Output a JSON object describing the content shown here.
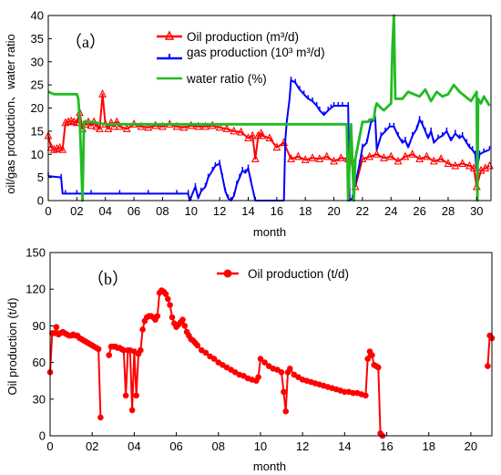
{
  "chart_data": [
    {
      "type": "line",
      "panel_label": "（a）",
      "xlabel": "month",
      "ylabel": "oil/gas production、water ratio",
      "xlim": [
        0,
        31
      ],
      "ylim": [
        0,
        40
      ],
      "xticks": [
        0,
        2,
        4,
        6,
        8,
        10,
        12,
        14,
        16,
        18,
        20,
        22,
        24,
        26,
        28,
        30
      ],
      "xtick_labels": [
        "0",
        "02",
        "04",
        "06",
        "08",
        "10",
        "12",
        "14",
        "16",
        "18",
        "20",
        "22",
        "24",
        "26",
        "28",
        "30"
      ],
      "yticks": [
        0,
        5,
        10,
        15,
        20,
        25,
        30,
        35,
        40
      ],
      "ytick_labels": [
        "0",
        "5",
        "10",
        "15",
        "20",
        "25",
        "30",
        "35",
        "40"
      ],
      "grid": false,
      "legend": "top-center",
      "series": [
        {
          "name": "Oil production (m³/d)",
          "color": "#ff0000",
          "marker": "triangle",
          "x": [
            0,
            0.2,
            0.4,
            0.6,
            0.8,
            1.0,
            1.2,
            1.4,
            1.6,
            1.8,
            2.0,
            2.2,
            2.4,
            2.6,
            2.8,
            3.0,
            3.2,
            3.4,
            3.6,
            3.8,
            4.0,
            4.2,
            4.4,
            4.6,
            4.8,
            5.0,
            5.5,
            6.0,
            6.5,
            7.0,
            7.5,
            8.0,
            8.5,
            9.0,
            9.5,
            10.0,
            10.5,
            11.0,
            11.5,
            12.0,
            12.5,
            13.0,
            13.5,
            14.0,
            14.3,
            14.5,
            14.7,
            14.9,
            15.0,
            15.5,
            16.0,
            16.5,
            17.0,
            17.5,
            18.0,
            18.5,
            19.0,
            19.5,
            20.0,
            20.5,
            21.0,
            21.2,
            21.5,
            22.0,
            22.5,
            23.0,
            23.5,
            24.0,
            24.5,
            25.0,
            25.5,
            26.0,
            26.5,
            27.0,
            27.5,
            28.0,
            28.5,
            29.0,
            29.5,
            29.8,
            30.0,
            30.3,
            30.6,
            30.9
          ],
          "values": [
            14.0,
            11.5,
            11.0,
            11.2,
            11.4,
            11.0,
            16.8,
            17.0,
            17.2,
            17.0,
            16.8,
            19.0,
            15.5,
            16.5,
            17.0,
            16.2,
            17.0,
            16.0,
            15.5,
            23.0,
            16.5,
            15.5,
            16.8,
            16.0,
            17.0,
            16.0,
            15.5,
            16.5,
            16.0,
            15.8,
            16.2,
            16.0,
            16.5,
            16.0,
            15.8,
            16.2,
            16.0,
            16.0,
            16.2,
            15.8,
            15.5,
            15.0,
            14.8,
            13.5,
            14.0,
            9.0,
            14.0,
            14.5,
            14.0,
            13.5,
            11.5,
            12.5,
            9.0,
            9.5,
            8.8,
            9.2,
            9.0,
            9.5,
            8.5,
            9.2,
            9.0,
            9.0,
            3.0,
            9.0,
            9.5,
            10.0,
            9.2,
            9.5,
            8.5,
            9.5,
            10.0,
            9.0,
            9.5,
            8.5,
            9.0,
            8.0,
            7.5,
            8.0,
            7.5,
            7.0,
            3.0,
            6.5,
            7.0,
            7.5
          ]
        },
        {
          "name": "gas production (10³ m³/d)",
          "color": "#0000ff",
          "marker": "short-dash",
          "x": [
            0,
            0.9,
            1.0,
            1.2,
            2.0,
            3.0,
            5.0,
            7.0,
            9.0,
            9.8,
            9.9,
            10.3,
            10.5,
            10.7,
            11.0,
            11.2,
            11.5,
            11.7,
            12.0,
            12.2,
            12.4,
            12.6,
            12.8,
            13.0,
            13.2,
            13.4,
            13.6,
            13.8,
            14.0,
            14.2,
            14.5,
            16.5,
            16.6,
            16.7,
            16.9,
            17.0,
            17.3,
            17.6,
            17.9,
            18.2,
            18.5,
            18.8,
            19.0,
            19.3,
            19.6,
            19.8,
            20.0,
            20.3,
            20.6,
            21.0,
            21.1,
            21.3,
            21.8,
            22.0,
            22.3,
            22.6,
            22.9,
            23.0,
            23.3,
            23.6,
            23.9,
            24.2,
            24.5,
            24.8,
            25.0,
            25.2,
            25.5,
            25.8,
            26.0,
            26.2,
            26.4,
            26.6,
            26.8,
            27.0,
            27.3,
            27.6,
            27.9,
            28.2,
            28.5,
            28.8,
            29.0,
            29.3,
            29.5,
            29.7,
            29.9,
            30.0,
            30.2,
            30.5,
            30.9
          ],
          "values": [
            5.3,
            5.0,
            1.5,
            1.5,
            1.5,
            1.5,
            1.5,
            1.5,
            1.5,
            1.5,
            0.0,
            3.0,
            0.5,
            2.0,
            3.0,
            5.0,
            6.5,
            7.5,
            8.0,
            5.0,
            2.0,
            0.5,
            0.0,
            1.0,
            3.5,
            5.0,
            6.5,
            6.0,
            7.0,
            4.0,
            0.0,
            0.0,
            13.0,
            17.0,
            22.0,
            26.0,
            25.5,
            24.0,
            23.0,
            22.0,
            21.5,
            20.5,
            19.5,
            18.5,
            19.5,
            20.0,
            20.5,
            20.5,
            20.5,
            20.5,
            0.0,
            0.5,
            8.0,
            11.5,
            12.5,
            17.0,
            17.5,
            11.0,
            14.0,
            15.0,
            16.0,
            16.0,
            14.0,
            12.5,
            13.0,
            11.5,
            14.0,
            15.5,
            17.5,
            16.5,
            15.0,
            13.5,
            15.0,
            12.5,
            13.5,
            14.0,
            15.0,
            13.0,
            14.5,
            13.5,
            14.0,
            12.5,
            11.5,
            11.0,
            10.0,
            6.5,
            10.0,
            10.5,
            11.0
          ]
        },
        {
          "name": "water ratio (%)",
          "color": "#22bb22",
          "marker": "none",
          "x": [
            0,
            0.4,
            1.0,
            1.5,
            2.0,
            2.1,
            2.2,
            2.4,
            2.5,
            2.6,
            3.0,
            4.0,
            6.0,
            8.0,
            10.0,
            12.0,
            14.0,
            16.0,
            18.0,
            20.0,
            20.9,
            21.0,
            21.2,
            21.4,
            21.5,
            22.0,
            22.4,
            22.5,
            22.8,
            22.9,
            23.0,
            23.3,
            23.5,
            24.0,
            24.1,
            24.2,
            24.3,
            24.4,
            24.5,
            24.8,
            25.2,
            25.6,
            26.0,
            26.4,
            26.8,
            27.2,
            27.6,
            28.0,
            28.4,
            28.8,
            29.2,
            29.6,
            30.0,
            30.05,
            30.1,
            30.3,
            30.5,
            30.7,
            30.9
          ],
          "values": [
            23.5,
            23.0,
            23.0,
            23.0,
            23.0,
            22.0,
            18.0,
            0.0,
            17.0,
            17.0,
            17.0,
            16.5,
            16.5,
            16.5,
            16.5,
            16.5,
            16.5,
            16.5,
            16.5,
            16.5,
            16.5,
            0.0,
            16.5,
            0.0,
            9.0,
            17.0,
            17.0,
            17.5,
            17.5,
            20.0,
            21.0,
            20.0,
            19.5,
            21.0,
            33.0,
            40.0,
            22.0,
            22.0,
            22.0,
            22.0,
            23.5,
            23.0,
            22.5,
            24.0,
            21.5,
            23.5,
            22.5,
            23.0,
            25.0,
            23.5,
            22.5,
            21.5,
            23.5,
            0.0,
            22.0,
            21.0,
            22.5,
            21.5,
            20.5
          ]
        }
      ]
    },
    {
      "type": "line",
      "panel_label": "（b）",
      "xlabel": "month",
      "ylabel": "Oil production (t/d)",
      "xlim": [
        0,
        21
      ],
      "ylim": [
        0,
        150
      ],
      "xticks": [
        0,
        2,
        4,
        6,
        8,
        10,
        12,
        14,
        16,
        18,
        20
      ],
      "xtick_labels": [
        "0",
        "02",
        "04",
        "06",
        "08",
        "10",
        "12",
        "14",
        "16",
        "18",
        "20"
      ],
      "yticks": [
        0,
        30,
        60,
        90,
        120,
        150
      ],
      "ytick_labels": [
        "0",
        "30",
        "60",
        "90",
        "120",
        "150"
      ],
      "grid": false,
      "legend": "top-center",
      "series": [
        {
          "name": "Oil production (t/d)",
          "color": "#ff0000",
          "marker": "circle",
          "segments": [
            {
              "x": [
                0.0,
                0.1,
                0.2,
                0.3,
                0.4,
                0.5,
                0.6,
                0.7,
                0.8,
                0.9,
                1.0,
                1.1,
                1.2,
                1.3,
                1.4,
                1.5,
                1.6,
                1.7,
                1.8,
                1.9,
                2.0,
                2.1,
                2.2,
                2.3,
                2.4
              ],
              "y": [
                52,
                84,
                84,
                89,
                83,
                84,
                85,
                84,
                83,
                82,
                82,
                83,
                82,
                82,
                80,
                79,
                78,
                77,
                76,
                75,
                74,
                73,
                72,
                71,
                15
              ]
            },
            {
              "x": [
                2.8,
                2.9,
                3.0,
                3.1,
                3.2,
                3.3,
                3.4,
                3.5,
                3.6,
                3.7,
                3.8,
                3.9,
                4.0,
                4.1,
                4.2,
                4.3,
                4.4,
                4.5,
                4.6,
                4.7,
                4.8,
                4.9,
                5.0,
                5.1,
                5.2,
                5.3,
                5.4,
                5.5,
                5.6,
                5.7,
                5.8,
                5.9,
                6.0,
                6.1,
                6.2,
                6.3,
                6.4,
                6.5,
                6.6,
                6.7,
                6.8,
                6.9,
                7.0,
                7.2,
                7.4,
                7.6,
                7.8,
                8.0,
                8.2,
                8.4,
                8.6,
                8.8,
                9.0,
                9.2,
                9.4,
                9.6,
                9.8,
                9.9,
                10.0,
                10.2,
                10.4,
                10.6,
                10.8,
                11.0,
                11.1,
                11.2,
                11.3,
                11.4,
                11.6,
                11.8,
                12.0,
                12.2,
                12.4,
                12.6,
                12.8,
                13.0,
                13.2,
                13.4,
                13.6,
                13.8,
                14.0,
                14.2,
                14.4,
                14.6,
                14.8,
                15.0,
                15.1,
                15.2,
                15.3,
                15.4,
                15.5,
                15.6,
                15.7,
                15.8
              ],
              "y": [
                66,
                73,
                73,
                73,
                72,
                72,
                71,
                70,
                33,
                70,
                70,
                21,
                69,
                33,
                67,
                70,
                87,
                94,
                97,
                98,
                98,
                97,
                95,
                98,
                117,
                119,
                118,
                116,
                112,
                107,
                97,
                92,
                89,
                91,
                93,
                95,
                90,
                85,
                82,
                79,
                78,
                76,
                74,
                70,
                68,
                65,
                63,
                60,
                58,
                56,
                54,
                52,
                50,
                49,
                47,
                46,
                45,
                48,
                63,
                60,
                57,
                55,
                54,
                52,
                36,
                20,
                52,
                55,
                50,
                48,
                46,
                45,
                44,
                43,
                42,
                41,
                40,
                39,
                38,
                37,
                36,
                36,
                35,
                35,
                34,
                33,
                63,
                69,
                66,
                58,
                57,
                56,
                2,
                0
              ]
            },
            {
              "x": [
                20.8,
                20.9,
                21.0
              ],
              "y": [
                57,
                82,
                80
              ]
            }
          ]
        }
      ]
    }
  ]
}
